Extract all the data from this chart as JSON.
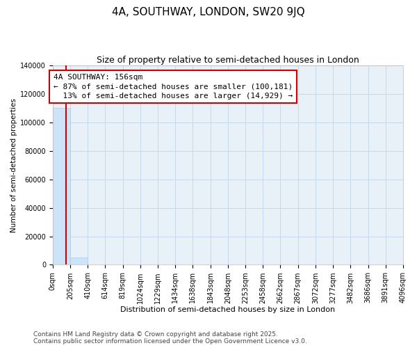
{
  "title": "4A, SOUTHWAY, LONDON, SW20 9JQ",
  "subtitle": "Size of property relative to semi-detached houses in London",
  "xlabel": "Distribution of semi-detached houses by size in London",
  "ylabel": "Number of semi-detached properties",
  "property_size": 156,
  "annotation_line1": "4A SOUTHWAY: 156sqm",
  "annotation_line2": "← 87% of semi-detached houses are smaller (100,181)",
  "annotation_line3": "  13% of semi-detached houses are larger (14,929) →",
  "bar_color": "#cce4f7",
  "bar_edge_color": "#aaccee",
  "line_color": "#cc0000",
  "grid_color": "#c8d8ec",
  "background_color": "#e8f0f8",
  "bin_edges": [
    0,
    205,
    410,
    614,
    819,
    1024,
    1229,
    1434,
    1638,
    1843,
    2048,
    2253,
    2458,
    2662,
    2867,
    3072,
    3277,
    3482,
    3686,
    3891,
    4096
  ],
  "bar_heights": [
    110181,
    4929,
    0,
    0,
    0,
    0,
    0,
    0,
    0,
    0,
    0,
    0,
    0,
    0,
    0,
    0,
    0,
    0,
    0,
    0
  ],
  "ylim": [
    0,
    140000
  ],
  "yticks": [
    0,
    20000,
    40000,
    60000,
    80000,
    100000,
    120000,
    140000
  ],
  "footer": "Contains HM Land Registry data © Crown copyright and database right 2025.\nContains public sector information licensed under the Open Government Licence v3.0.",
  "title_fontsize": 11,
  "subtitle_fontsize": 9,
  "tick_fontsize": 7,
  "ylabel_fontsize": 7.5,
  "xlabel_fontsize": 8,
  "footer_fontsize": 6.5,
  "annot_fontsize": 8
}
